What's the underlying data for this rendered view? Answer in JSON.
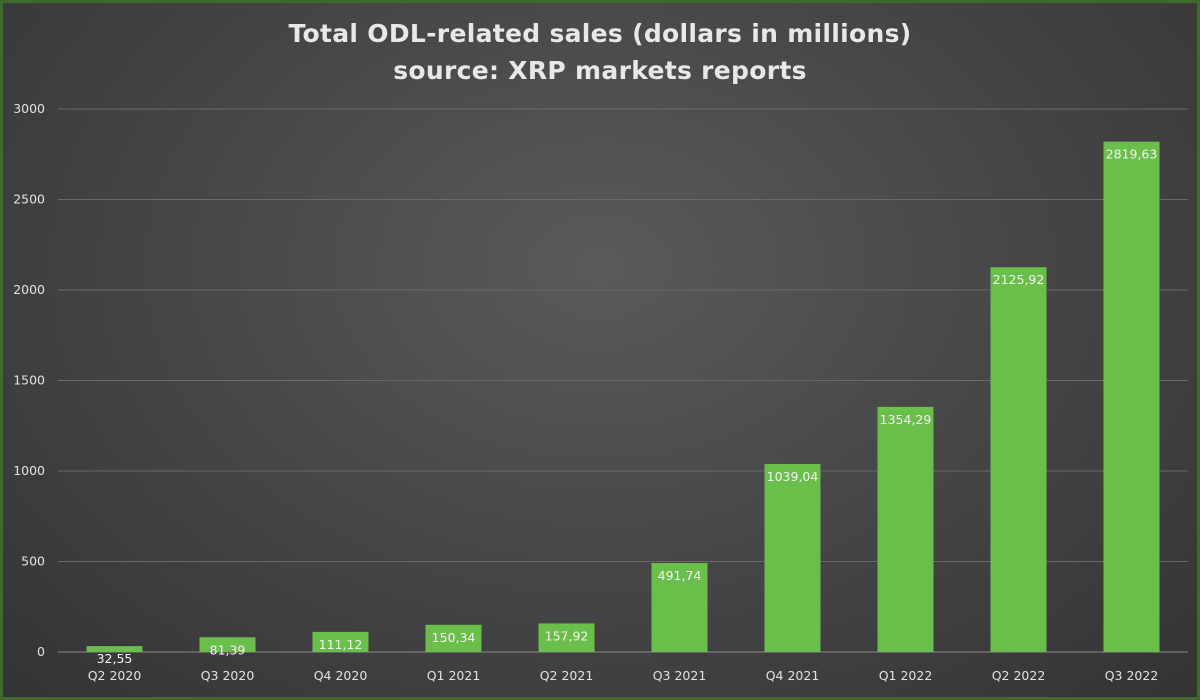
{
  "chart_data": {
    "type": "bar",
    "title": "Total ODL-related sales (dollars in millions)",
    "subtitle": "source: XRP markets reports",
    "categories": [
      "Q2 2020",
      "Q3 2020",
      "Q4 2020",
      "Q1 2021",
      "Q2 2021",
      "Q3 2021",
      "Q4 2021",
      "Q1 2022",
      "Q2 2022",
      "Q3 2022"
    ],
    "values": [
      32.55,
      81.39,
      111.12,
      150.34,
      157.92,
      491.74,
      1039.04,
      1354.29,
      2125.92,
      2819.63
    ],
    "data_labels": [
      "32,55",
      "81,39",
      "111,12",
      "150,34",
      "157,92",
      "491,74",
      "1039,04",
      "1354,29",
      "2125,92",
      "2819,63"
    ],
    "y_ticks": [
      0,
      500,
      1000,
      1500,
      2000,
      2500,
      3000
    ],
    "ylim": [
      0,
      3000
    ],
    "grid": true,
    "bar_color": "#6abf4b",
    "background_color": "#444444",
    "gridline_color": "#6a6a6a"
  }
}
